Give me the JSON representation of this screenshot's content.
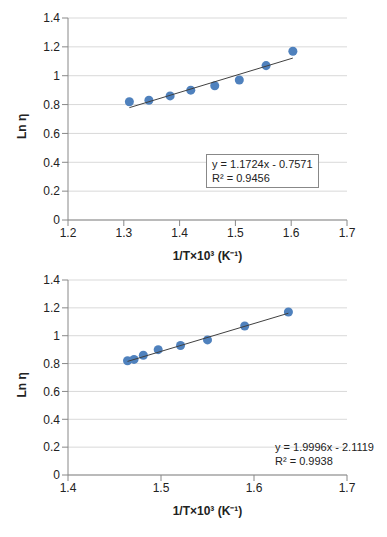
{
  "chart_data": [
    {
      "type": "scatter",
      "x_label": "1/T×10³ (K⁻¹)",
      "y_label": "Ln η",
      "xlim": [
        1.2,
        1.7
      ],
      "xticks": [
        1.2,
        1.3,
        1.4,
        1.5,
        1.6,
        1.7
      ],
      "ylim": [
        0,
        1.4
      ],
      "yticks": [
        0,
        0.2,
        0.4,
        0.6,
        0.8,
        1,
        1.2,
        1.4
      ],
      "grid": true,
      "annotations": [
        "y = 1.1724x - 0.7571",
        "R² = 0.9456"
      ],
      "series": [
        {
          "type": "scatter",
          "color": "#4f81bd",
          "marker": "circle",
          "x": [
            1.31,
            1.345,
            1.383,
            1.42,
            1.463,
            1.507,
            1.555,
            1.603
          ],
          "values": [
            0.82,
            0.83,
            0.86,
            0.9,
            0.93,
            0.97,
            1.07,
            1.17
          ]
        },
        {
          "type": "line",
          "color": "#404040",
          "line_style": "solid",
          "x": [
            1.31,
            1.603
          ],
          "values": [
            0.7787,
            1.1223
          ]
        }
      ]
    },
    {
      "type": "scatter",
      "x_label": "1/T×10³ (K⁻¹)",
      "y_label": "Ln η",
      "xlim": [
        1.4,
        1.7
      ],
      "xticks": [
        1.4,
        1.5,
        1.6,
        1.7
      ],
      "ylim": [
        0,
        1.4
      ],
      "yticks": [
        0,
        0.2,
        0.4,
        0.6,
        0.8,
        1,
        1.2,
        1.4
      ],
      "grid": true,
      "annotations": [
        "y = 1.9996x - 2.1119",
        "R² = 0.9938"
      ],
      "series": [
        {
          "type": "scatter",
          "color": "#4f81bd",
          "marker": "circle",
          "x": [
            1.464,
            1.471,
            1.481,
            1.497,
            1.521,
            1.55,
            1.59,
            1.637
          ],
          "values": [
            0.82,
            0.83,
            0.86,
            0.9,
            0.93,
            0.97,
            1.07,
            1.17
          ]
        },
        {
          "type": "line",
          "color": "#404040",
          "line_style": "solid",
          "x": [
            1.464,
            1.637
          ],
          "values": [
            0.8155,
            1.1614
          ]
        }
      ]
    }
  ]
}
